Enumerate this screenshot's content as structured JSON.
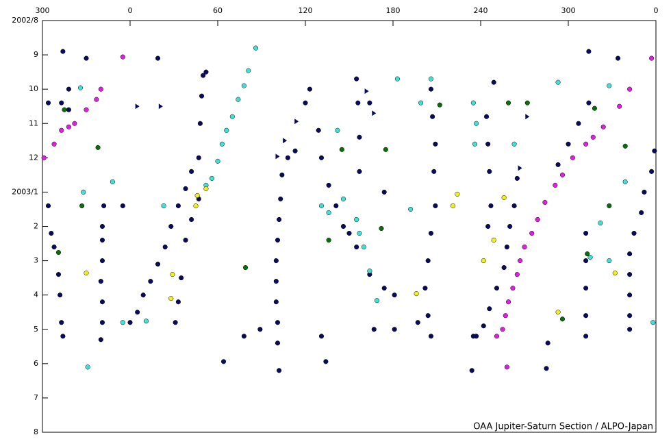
{
  "chart_data": {
    "type": "scatter",
    "annotation": "OAA Jupiter-Saturn Section / ALPO-Japan",
    "xlim": [
      -60,
      360
    ],
    "xticks": [
      {
        "value": -60,
        "label": "300"
      },
      0,
      60,
      120,
      180,
      240,
      300,
      {
        "value": 360,
        "label": "0"
      }
    ],
    "ylim": [
      0,
      12
    ],
    "y_inverted": true,
    "yticks": [
      {
        "value": 0,
        "label": "2002/8"
      },
      {
        "value": 1,
        "label": "9"
      },
      {
        "value": 2,
        "label": "10"
      },
      {
        "value": 3,
        "label": "11"
      },
      {
        "value": 4,
        "label": "12"
      },
      {
        "value": 5,
        "label": "2003/1"
      },
      {
        "value": 6,
        "label": "2"
      },
      {
        "value": 7,
        "label": "3"
      },
      {
        "value": 8,
        "label": "4"
      },
      {
        "value": 9,
        "label": "5"
      },
      {
        "value": 10,
        "label": "6"
      },
      {
        "value": 11,
        "label": "7"
      },
      {
        "value": 12,
        "label": "8"
      }
    ],
    "series": [
      {
        "color": "#0b0b5e",
        "marker": "circle",
        "x": [
          -18,
          -19,
          -19,
          -19,
          -20,
          -19,
          -19,
          -20,
          0,
          5,
          9,
          14,
          19,
          24,
          28,
          33,
          38,
          42,
          47,
          48,
          49,
          50,
          52,
          31,
          33,
          35,
          38,
          42,
          47,
          104,
          103,
          102,
          101,
          100,
          100,
          100,
          101,
          101,
          102,
          113,
          108,
          129,
          131,
          136,
          141,
          146,
          150,
          155,
          164,
          174,
          181,
          155,
          156,
          157,
          157,
          206,
          207,
          209,
          208,
          209,
          206,
          204,
          202,
          204,
          206,
          244,
          245,
          246,
          247,
          245,
          265,
          263,
          260,
          258,
          256,
          251,
          246,
          242,
          237,
          359,
          357,
          352,
          350,
          345,
          342,
          342,
          342,
          342,
          342,
          312,
          312,
          312,
          312,
          312,
          314,
          307,
          300,
          293,
          -56,
          -54,
          -52,
          -49,
          -48,
          -47,
          -46,
          -56,
          -47,
          -42,
          -46,
          120,
          123,
          164,
          174,
          181,
          167,
          197,
          234,
          235,
          249,
          286,
          285,
          64,
          78,
          89,
          131,
          134,
          -30,
          19,
          314,
          334,
          -42,
          -5
        ],
        "values": [
          5.4,
          6.0,
          6.4,
          7.0,
          7.6,
          8.2,
          8.8,
          9.3,
          8.8,
          8.5,
          8.0,
          7.6,
          7.1,
          6.6,
          6.0,
          5.4,
          4.9,
          4.4,
          4.0,
          3.0,
          2.2,
          1.6,
          1.5,
          8.8,
          8.2,
          7.5,
          6.4,
          5.8,
          5.2,
          4.5,
          5.2,
          5.8,
          6.4,
          7.0,
          7.6,
          8.2,
          8.8,
          9.4,
          10.2,
          3.8,
          4.0,
          3.2,
          4.0,
          4.8,
          5.4,
          6.0,
          6.2,
          6.6,
          7.4,
          7.8,
          8.0,
          1.7,
          2.4,
          3.4,
          4.4,
          2.0,
          2.8,
          3.6,
          4.4,
          5.4,
          6.2,
          7.0,
          7.8,
          8.6,
          9.2,
          2.8,
          3.6,
          4.4,
          5.4,
          6.0,
          4.6,
          5.4,
          6.0,
          6.6,
          7.2,
          7.8,
          8.4,
          8.9,
          9.2,
          3.8,
          4.4,
          5.0,
          5.6,
          6.2,
          6.8,
          7.4,
          8.0,
          8.6,
          9.0,
          6.2,
          7.0,
          7.8,
          8.6,
          9.2,
          2.4,
          3.0,
          3.6,
          4.2,
          5.4,
          6.2,
          6.6,
          7.4,
          8.0,
          8.8,
          9.2,
          2.4,
          2.4,
          2.0,
          0.9,
          2.4,
          2.0,
          2.4,
          5.0,
          9.0,
          9.0,
          8.8,
          10.2,
          9.2,
          1.8,
          9.4,
          10.14,
          9.94,
          9.2,
          9.0,
          9.2,
          9.94,
          1.1,
          1.1,
          0.9,
          1.1,
          2.6,
          5.4
        ]
      },
      {
        "color": "#40e0d8",
        "marker": "circle",
        "x": [
          86,
          81,
          78,
          74,
          70,
          66,
          63,
          60,
          56,
          52,
          -34,
          -32,
          -12,
          -5,
          11,
          23,
          142,
          136,
          146,
          155,
          157,
          160,
          164,
          169,
          183,
          206,
          199,
          235,
          237,
          236,
          263,
          293,
          328,
          339,
          322,
          315,
          328,
          358,
          -29,
          131,
          192
        ],
        "values": [
          0.8,
          1.46,
          1.9,
          2.3,
          2.8,
          3.2,
          3.6,
          4.1,
          4.6,
          4.8,
          1.96,
          5.0,
          4.7,
          8.8,
          8.76,
          5.4,
          3.2,
          5.6,
          5.2,
          5.8,
          6.2,
          6.6,
          7.3,
          8.16,
          1.7,
          1.7,
          2.4,
          2.4,
          3.0,
          3.6,
          3.6,
          1.8,
          1.9,
          4.7,
          5.9,
          6.9,
          7.0,
          8.8,
          10.1,
          5.4,
          5.5
        ]
      },
      {
        "color": "#e020e0",
        "marker": "circle",
        "x": [
          -59,
          -52,
          -47,
          -42,
          -38,
          -30,
          -23,
          -20,
          -5,
          357,
          342,
          335,
          324,
          317,
          312,
          303,
          296,
          291,
          284,
          279,
          275,
          270,
          267,
          265,
          262,
          259,
          257,
          255,
          251,
          258
        ],
        "values": [
          4.0,
          3.6,
          3.2,
          3.1,
          3.0,
          2.6,
          2.3,
          2.0,
          1.06,
          1.1,
          2.0,
          2.5,
          3.1,
          3.4,
          3.6,
          4.0,
          4.5,
          4.8,
          5.3,
          5.8,
          6.2,
          6.6,
          7.0,
          7.4,
          7.8,
          8.2,
          8.6,
          9.0,
          9.2,
          10.1
        ]
      },
      {
        "color": "#0a6e0a",
        "marker": "circle",
        "x": [
          -45,
          -22,
          -33,
          -49,
          79,
          145,
          175,
          172,
          136,
          212,
          259,
          272,
          318,
          339,
          328,
          313,
          296
        ],
        "values": [
          2.6,
          3.7,
          5.4,
          6.76,
          7.2,
          3.76,
          3.76,
          6.06,
          6.4,
          2.46,
          2.4,
          2.4,
          2.56,
          3.66,
          5.4,
          6.8,
          8.7
        ]
      },
      {
        "color": "#f0f020",
        "marker": "circle",
        "x": [
          -30,
          29,
          28,
          46,
          45,
          52,
          221,
          224,
          249,
          242,
          256,
          293,
          332,
          196
        ],
        "values": [
          7.36,
          7.4,
          8.1,
          5.1,
          5.4,
          4.9,
          5.4,
          5.06,
          6.4,
          7.0,
          5.16,
          8.5,
          7.36,
          7.96
        ]
      },
      {
        "color": "#0b0b5e",
        "marker": "triangle",
        "x": [
          5,
          21,
          114,
          106,
          101,
          162,
          167,
          272,
          267
        ],
        "values": [
          2.5,
          2.5,
          2.94,
          3.5,
          3.96,
          2.06,
          2.7,
          2.8,
          4.3
        ]
      }
    ]
  }
}
